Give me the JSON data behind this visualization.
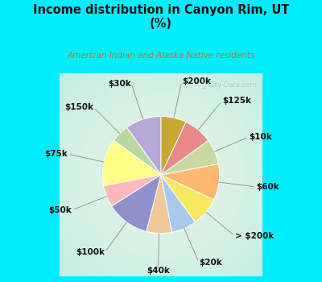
{
  "title": "Income distribution in Canyon Rim, UT\n(%)",
  "subtitle": "American Indian and Alaska Native residents",
  "title_color": "#111111",
  "subtitle_color": "#cc6633",
  "bg_cyan": "#00eeff",
  "bg_chart": "#d8f0e8",
  "watermark": "ⓘ City-Data.com",
  "labels": [
    "$30k",
    "$150k",
    "$75k",
    "$50k",
    "$100k",
    "$40k",
    "$20k",
    "> $200k",
    "$60k",
    "$10k",
    "$125k",
    "$200k"
  ],
  "values": [
    10,
    5,
    13,
    6,
    12,
    7,
    7,
    8,
    10,
    7,
    8,
    7
  ],
  "colors": [
    "#b8a8d8",
    "#b8d8a0",
    "#ffff88",
    "#ffb8b8",
    "#9090cc",
    "#f0c898",
    "#a8c8f0",
    "#f8e860",
    "#ffb870",
    "#c8d8a0",
    "#e88888",
    "#c8a830"
  ],
  "startangle": 90,
  "label_fontsize": 7.5,
  "figsize": [
    4.0,
    3.5
  ],
  "dpi": 100
}
